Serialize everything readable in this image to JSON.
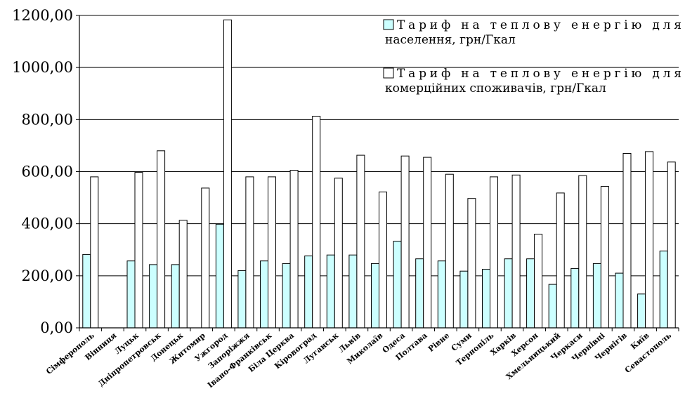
{
  "chart_data": {
    "type": "bar",
    "categories": [
      "Сімферополь",
      "Вінниця",
      "Луцьк",
      "Дніпропетровськ",
      "Донецьк",
      "Житомир",
      "Ужгород",
      "Запоріжжя",
      "Івано-Франківськ",
      "Біла Церква",
      "Кіровоград",
      "Луганськ",
      "Львів",
      "Миколаїв",
      "Одеса",
      "Полтава",
      "Рівне",
      "Суми",
      "Тернопіль",
      "Харків",
      "Херсон",
      "Хмельницький",
      "Черкаси",
      "Чернівці",
      "Чернігів",
      "Київ",
      "Севастополь"
    ],
    "series": [
      {
        "name": "Тариф на теплову енергію для населення, грн/Гкал",
        "color": "#ccffff",
        "values": [
          282,
          null,
          257,
          243,
          243,
          null,
          398,
          220,
          257,
          247,
          276,
          280,
          280,
          247,
          333,
          265,
          257,
          218,
          225,
          265,
          265,
          167,
          228,
          247,
          210,
          130,
          295
        ]
      },
      {
        "name": "Тариф на теплову енергію для комерційних споживачів, грн/Гкал",
        "color": "#ffffff",
        "values": [
          580,
          null,
          597,
          680,
          413,
          537,
          1183,
          580,
          580,
          605,
          813,
          575,
          663,
          522,
          660,
          655,
          590,
          497,
          580,
          587,
          360,
          518,
          585,
          543,
          670,
          677,
          637
        ]
      }
    ],
    "ylim": [
      0,
      1200
    ],
    "yticks": [
      "0,00",
      "200,00",
      "400,00",
      "600,00",
      "800,00",
      "1000,00",
      "1200,00"
    ],
    "ytick_values": [
      0,
      200,
      400,
      600,
      800,
      1000,
      1200
    ],
    "grid": true,
    "legend_position": "top-right",
    "legend_lines": [
      [
        "Тариф на теплову енергію для",
        "населення, грн/Гкал"
      ],
      [
        "Тариф на теплову енергію для",
        "комерційних споживачів, грн/Гкал"
      ]
    ]
  }
}
